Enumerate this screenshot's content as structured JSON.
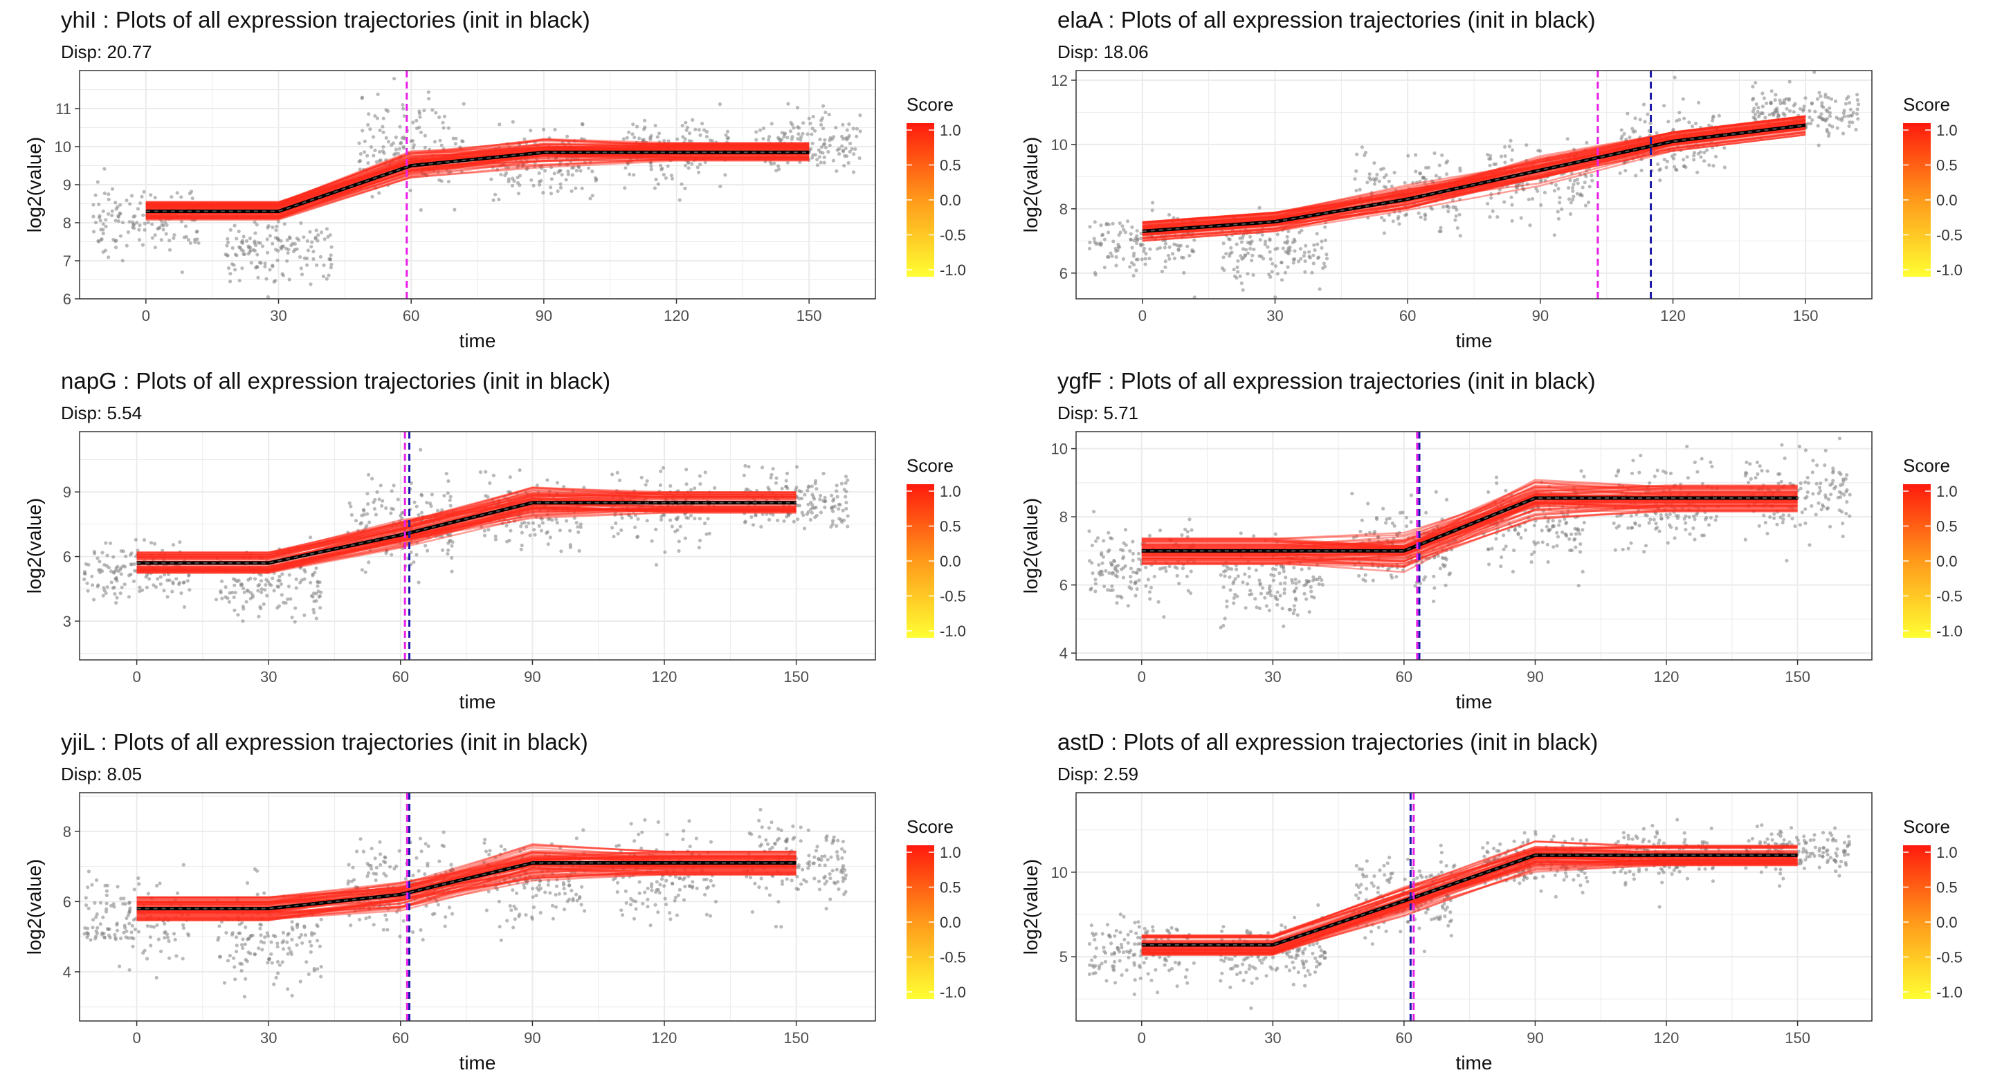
{
  "figure": {
    "colors": {
      "panel_border": "#333333",
      "grid": "#ebebeb",
      "points": "#7f7f7f",
      "trajectory": "#ff2a1a",
      "init": "#000000",
      "score_high": "#ff1a0d",
      "score_low": "#ffff33",
      "vline_a": "#e81ee8",
      "vline_b": "#1a1aa8"
    }
  },
  "chart_data": [
    {
      "type": "line",
      "title": "yhiI : Plots of all expression trajectories (init in black)",
      "subtitle": "Disp: 20.77",
      "xlabel": "time",
      "ylabel": "log2(value)",
      "xlim": [
        -15,
        165
      ],
      "ylim": [
        6,
        12
      ],
      "xticks": [
        0,
        30,
        60,
        90,
        120,
        150
      ],
      "yticks": [
        6,
        7,
        8,
        9,
        10,
        11
      ],
      "grid": true,
      "legend": {
        "title": "Score",
        "labels": [
          "1.0",
          "0.5",
          "0.0",
          "-0.5",
          "-1.0"
        ],
        "position": "right"
      },
      "init_trajectory": {
        "x": [
          0,
          30,
          60,
          90,
          120,
          150
        ],
        "y": [
          8.3,
          8.3,
          9.5,
          9.85,
          9.85,
          9.85
        ]
      },
      "trajectory_spread": 0.25,
      "point_clusters": [
        {
          "x": 0,
          "mean": 8.1,
          "sd": 0.4
        },
        {
          "x": 30,
          "mean": 7.3,
          "sd": 0.4
        },
        {
          "x": 60,
          "mean": 10.0,
          "sd": 0.6
        },
        {
          "x": 90,
          "mean": 9.5,
          "sd": 0.45
        },
        {
          "x": 120,
          "mean": 9.9,
          "sd": 0.45
        },
        {
          "x": 150,
          "mean": 10.1,
          "sd": 0.35
        }
      ],
      "vlines": [
        {
          "x": 59,
          "color": "#e81ee8"
        }
      ]
    },
    {
      "type": "line",
      "title": "elaA : Plots of all expression trajectories (init in black)",
      "subtitle": "Disp: 18.06",
      "xlabel": "time",
      "ylabel": "log2(value)",
      "xlim": [
        -15,
        165
      ],
      "ylim": [
        5.2,
        12.3
      ],
      "xticks": [
        0,
        30,
        60,
        90,
        120,
        150
      ],
      "yticks": [
        6,
        8,
        10,
        12
      ],
      "grid": true,
      "legend": {
        "title": "Score",
        "labels": [
          "1.0",
          "0.5",
          "0.0",
          "-0.5",
          "-1.0"
        ],
        "position": "right"
      },
      "init_trajectory": {
        "x": [
          0,
          30,
          60,
          90,
          120,
          150
        ],
        "y": [
          7.3,
          7.6,
          8.3,
          9.2,
          10.1,
          10.6
        ]
      },
      "trajectory_spread": 0.3,
      "point_clusters": [
        {
          "x": 0,
          "mean": 7.0,
          "sd": 0.5
        },
        {
          "x": 30,
          "mean": 6.8,
          "sd": 0.5
        },
        {
          "x": 60,
          "mean": 8.5,
          "sd": 0.6
        },
        {
          "x": 90,
          "mean": 9.0,
          "sd": 0.6
        },
        {
          "x": 120,
          "mean": 10.0,
          "sd": 0.55
        },
        {
          "x": 150,
          "mean": 11.0,
          "sd": 0.35
        }
      ],
      "vlines": [
        {
          "x": 103,
          "color": "#e81ee8"
        },
        {
          "x": 115,
          "color": "#1a1aa8"
        }
      ]
    },
    {
      "type": "line",
      "title": "napG : Plots of all expression trajectories (init in black)",
      "subtitle": "Disp: 5.54",
      "xlabel": "time",
      "ylabel": "log2(value)",
      "xlim": [
        -13,
        168
      ],
      "ylim": [
        1.2,
        11.8
      ],
      "xticks": [
        0,
        30,
        60,
        90,
        120,
        150
      ],
      "yticks": [
        3,
        6,
        9
      ],
      "grid": true,
      "legend": {
        "title": "Score",
        "labels": [
          "1.0",
          "0.5",
          "0.0",
          "-0.5",
          "-1.0"
        ],
        "position": "right"
      },
      "init_trajectory": {
        "x": [
          0,
          30,
          60,
          90,
          120,
          150
        ],
        "y": [
          5.7,
          5.7,
          7.0,
          8.5,
          8.5,
          8.5
        ]
      },
      "trajectory_spread": 0.5,
      "point_clusters": [
        {
          "x": 0,
          "mean": 5.3,
          "sd": 0.7
        },
        {
          "x": 30,
          "mean": 4.8,
          "sd": 0.8
        },
        {
          "x": 60,
          "mean": 7.5,
          "sd": 1.0
        },
        {
          "x": 90,
          "mean": 8.0,
          "sd": 0.8
        },
        {
          "x": 120,
          "mean": 8.3,
          "sd": 0.8
        },
        {
          "x": 150,
          "mean": 8.6,
          "sd": 0.7
        }
      ],
      "vlines": [
        {
          "x": 61,
          "color": "#e81ee8"
        },
        {
          "x": 62,
          "color": "#1a1aa8"
        }
      ]
    },
    {
      "type": "line",
      "title": "ygfF : Plots of all expression trajectories (init in black)",
      "subtitle": "Disp: 5.71",
      "xlabel": "time",
      "ylabel": "log2(value)",
      "xlim": [
        -15,
        167
      ],
      "ylim": [
        3.8,
        10.5
      ],
      "xticks": [
        0,
        30,
        60,
        90,
        120,
        150
      ],
      "yticks": [
        4,
        6,
        8,
        10
      ],
      "grid": true,
      "legend": {
        "title": "Score",
        "labels": [
          "1.0",
          "0.5",
          "0.0",
          "-0.5",
          "-1.0"
        ],
        "position": "right"
      },
      "init_trajectory": {
        "x": [
          0,
          30,
          60,
          90,
          120,
          150
        ],
        "y": [
          7.0,
          7.0,
          7.0,
          8.55,
          8.55,
          8.55
        ]
      },
      "trajectory_spread": 0.4,
      "point_clusters": [
        {
          "x": 0,
          "mean": 6.6,
          "sd": 0.6
        },
        {
          "x": 30,
          "mean": 6.2,
          "sd": 0.6
        },
        {
          "x": 60,
          "mean": 7.2,
          "sd": 0.7
        },
        {
          "x": 90,
          "mean": 7.8,
          "sd": 0.6
        },
        {
          "x": 120,
          "mean": 8.3,
          "sd": 0.7
        },
        {
          "x": 150,
          "mean": 8.6,
          "sd": 0.6
        }
      ],
      "vlines": [
        {
          "x": 63,
          "color": "#e81ee8"
        },
        {
          "x": 63.5,
          "color": "#1a1aa8"
        }
      ]
    },
    {
      "type": "line",
      "title": "yjiL : Plots of all expression trajectories (init in black)",
      "subtitle": "Disp: 8.05",
      "xlabel": "time",
      "ylabel": "log2(value)",
      "xlim": [
        -13,
        168
      ],
      "ylim": [
        2.6,
        9.1
      ],
      "xticks": [
        0,
        30,
        60,
        90,
        120,
        150
      ],
      "yticks": [
        4,
        6,
        8
      ],
      "grid": true,
      "legend": {
        "title": "Score",
        "labels": [
          "1.0",
          "0.5",
          "0.0",
          "-0.5",
          "-1.0"
        ],
        "position": "right"
      },
      "init_trajectory": {
        "x": [
          0,
          30,
          60,
          90,
          120,
          150
        ],
        "y": [
          5.8,
          5.8,
          6.2,
          7.1,
          7.1,
          7.1
        ]
      },
      "trajectory_spread": 0.35,
      "point_clusters": [
        {
          "x": 0,
          "mean": 5.5,
          "sd": 0.5
        },
        {
          "x": 30,
          "mean": 4.9,
          "sd": 0.6
        },
        {
          "x": 60,
          "mean": 6.5,
          "sd": 0.7
        },
        {
          "x": 90,
          "mean": 6.6,
          "sd": 0.6
        },
        {
          "x": 120,
          "mean": 6.8,
          "sd": 0.6
        },
        {
          "x": 150,
          "mean": 7.1,
          "sd": 0.6
        }
      ],
      "vlines": [
        {
          "x": 61.5,
          "color": "#e81ee8"
        },
        {
          "x": 62,
          "color": "#1a1aa8"
        }
      ]
    },
    {
      "type": "line",
      "title": "astD : Plots of all expression trajectories (init in black)",
      "subtitle": "Disp: 2.59",
      "xlabel": "time",
      "ylabel": "log2(value)",
      "xlim": [
        -15,
        167
      ],
      "ylim": [
        1.2,
        14.7
      ],
      "xticks": [
        0,
        30,
        60,
        90,
        120,
        150
      ],
      "yticks": [
        5,
        10
      ],
      "grid": true,
      "legend": {
        "title": "Score",
        "labels": [
          "1.0",
          "0.5",
          "0.0",
          "-0.5",
          "-1.0"
        ],
        "position": "right"
      },
      "init_trajectory": {
        "x": [
          0,
          30,
          60,
          90,
          120,
          150
        ],
        "y": [
          5.7,
          5.7,
          8.3,
          11.0,
          11.0,
          11.0
        ]
      },
      "trajectory_spread": 0.6,
      "point_clusters": [
        {
          "x": 0,
          "mean": 5.4,
          "sd": 0.9
        },
        {
          "x": 30,
          "mean": 5.2,
          "sd": 0.9
        },
        {
          "x": 60,
          "mean": 8.5,
          "sd": 1.2
        },
        {
          "x": 90,
          "mean": 10.6,
          "sd": 0.8
        },
        {
          "x": 120,
          "mean": 10.8,
          "sd": 0.8
        },
        {
          "x": 150,
          "mean": 11.3,
          "sd": 0.7
        }
      ],
      "vlines": [
        {
          "x": 61.5,
          "color": "#1a1aa8"
        },
        {
          "x": 62.2,
          "color": "#e81ee8"
        }
      ]
    }
  ]
}
